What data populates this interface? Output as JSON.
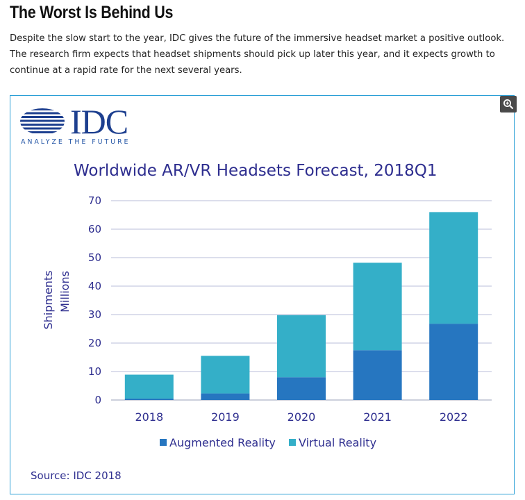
{
  "article": {
    "headline": "The Worst Is Behind Us",
    "intro": "Despite the slow start to the year, IDC gives the future of the immersive headset market a positive outlook. The research firm expects that headset shipments should pick up later this year, and it expects growth to continue at a rapid rate for the next several years."
  },
  "figure": {
    "logo_text": "IDC",
    "logo_tagline": "ANALYZE THE FUTURE",
    "source": "Source: IDC 2018",
    "zoom_icon": "zoom-in-icon"
  },
  "colors": {
    "ar": "#2676c0",
    "vr": "#34afc8",
    "title": "#2e2e8f",
    "logo": "#1d3f8f",
    "frame": "#2a9fd6"
  },
  "chart_data": {
    "type": "bar",
    "stacked": true,
    "title": "Worldwide AR/VR Headsets Forecast, 2018Q1",
    "ylabel": "Shipments",
    "ylabel2": "Millions",
    "xlabel": "",
    "categories": [
      "2018",
      "2019",
      "2020",
      "2021",
      "2022"
    ],
    "series": [
      {
        "name": "Augmented Reality",
        "values": [
          0.5,
          2.3,
          8.0,
          17.5,
          26.8
        ]
      },
      {
        "name": "Virtual Reality",
        "values": [
          8.4,
          13.2,
          21.8,
          30.7,
          39.2
        ]
      }
    ],
    "ylim": [
      0,
      70
    ],
    "yticks": [
      0,
      10,
      20,
      30,
      40,
      50,
      60,
      70
    ],
    "grid": true,
    "legend": "bottom"
  }
}
